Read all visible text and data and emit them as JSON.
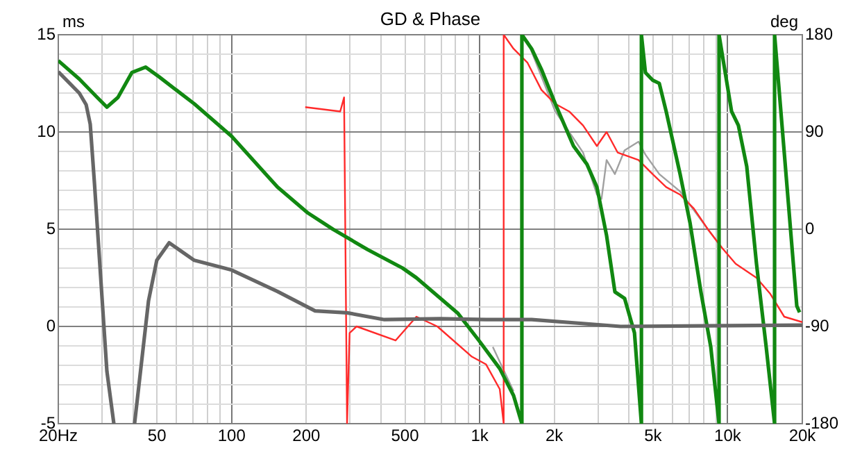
{
  "chart_data": {
    "type": "line",
    "title": "GD & Phase",
    "ylabel": "ms",
    "y2label": "deg",
    "log": "x",
    "grid": true,
    "legend": false,
    "marker": "none",
    "line_style": "solid",
    "xlim": [
      20,
      20000
    ],
    "xticks": [
      {
        "value": 20,
        "label": "20Hz"
      },
      {
        "value": 30,
        "label": null
      },
      {
        "value": 40,
        "label": null
      },
      50,
      {
        "value": 60,
        "label": null
      },
      {
        "value": 70,
        "label": null
      },
      {
        "value": 80,
        "label": null
      },
      {
        "value": 90,
        "label": null
      },
      100,
      200,
      {
        "value": 300,
        "label": null
      },
      {
        "value": 400,
        "label": null
      },
      500,
      {
        "value": 600,
        "label": null
      },
      {
        "value": 700,
        "label": null
      },
      {
        "value": 800,
        "label": null
      },
      {
        "value": 900,
        "label": null
      },
      {
        "value": 1000,
        "label": "1k"
      },
      {
        "value": 2000,
        "label": "2k"
      },
      {
        "value": 3000,
        "label": null
      },
      {
        "value": 4000,
        "label": null
      },
      {
        "value": 5000,
        "label": "5k"
      },
      {
        "value": 6000,
        "label": null
      },
      {
        "value": 7000,
        "label": null
      },
      {
        "value": 8000,
        "label": null
      },
      {
        "value": 9000,
        "label": null
      },
      {
        "value": 10000,
        "label": "10k"
      },
      {
        "value": 20000,
        "label": "20k"
      }
    ],
    "ylim": [
      -5,
      15
    ],
    "yticks": [
      -5,
      {
        "value": -4,
        "label": null
      },
      {
        "value": -3,
        "label": null
      },
      {
        "value": -2,
        "label": null
      },
      {
        "value": -1,
        "label": null
      },
      0,
      {
        "value": 1,
        "label": null
      },
      {
        "value": 2,
        "label": null
      },
      {
        "value": 3,
        "label": null
      },
      {
        "value": 4,
        "label": null
      },
      5,
      {
        "value": 6,
        "label": null
      },
      {
        "value": 7,
        "label": null
      },
      {
        "value": 8,
        "label": null
      },
      {
        "value": 9,
        "label": null
      },
      10,
      {
        "value": 11,
        "label": null
      },
      {
        "value": 12,
        "label": null
      },
      {
        "value": 13,
        "label": null
      },
      {
        "value": 14,
        "label": null
      },
      15
    ],
    "y2lim": [
      -180,
      180
    ],
    "y2ticks": [
      -180,
      -90,
      0,
      90,
      180
    ],
    "series": [
      {
        "color": "#666666",
        "x": [
          20,
          24.3,
          25.9,
          26.9,
          28,
          31.4,
          33.5,
          37,
          40.6,
          46.2,
          49.9,
          56,
          70.7,
          100,
          153,
          217,
          292,
          413,
          692,
          1060,
          1620,
          3700,
          20000
        ],
        "values": [
          13.1,
          12,
          11.4,
          10.4,
          7.3,
          -2.3,
          -5,
          null,
          -5,
          1.3,
          3.4,
          4.3,
          3.4,
          2.9,
          1.8,
          0.8,
          0.7,
          0.35,
          0.4,
          0.35,
          0.35,
          0,
          0.07
        ]
      },
      {
        "color": "#118811",
        "axis": "y2",
        "x": [
          20,
          24.3,
          28.7,
          31.4,
          34.8,
          39.6,
          45,
          51,
          70.7,
          100,
          153,
          203,
          256,
          354,
          489,
          556,
          818,
          993,
          1205,
          1370,
          1480,
          1480,
          1620,
          1774,
          2018,
          2390,
          2710,
          2970,
          3250,
          3510,
          3840,
          4210,
          4490,
          4490,
          4660,
          4980,
          5300,
          5650,
          6430,
          7050,
          7800,
          8550,
          9230,
          9230,
          10370,
          11050,
          11940,
          13070,
          14300,
          15460,
          15460,
          16910,
          19000,
          19500
        ],
        "values": [
          156,
          139,
          122,
          113,
          122,
          145,
          150,
          141,
          116,
          86,
          39,
          15,
          0,
          -19,
          -36,
          -45,
          -78,
          -103,
          -129,
          -154,
          -180,
          180,
          167,
          148,
          116,
          77,
          60,
          39,
          -6,
          -58,
          -64,
          -96,
          -180,
          180,
          145,
          138,
          135,
          109,
          51,
          6,
          -58,
          -109,
          -180,
          180,
          109,
          96,
          58,
          -32,
          -109,
          -180,
          180,
          71,
          -71,
          -77
        ]
      },
      {
        "color": "#ff2a2a",
        "axis": "y2",
        "x": [
          198,
          274,
          284,
          292,
          299,
          319,
          458,
          556,
          675,
          930,
          1060,
          1205,
          1250,
          1250,
          1370,
          1560,
          1774,
          2018,
          2296,
          2612,
          2970,
          3250,
          3600,
          4370,
          4980,
          5650,
          6430,
          7310,
          8320,
          9470,
          10770,
          13070,
          14870,
          16910,
          20000
        ],
        "values": [
          113,
          109,
          122,
          -180,
          -96,
          -90,
          -103,
          -81,
          -90,
          -118,
          -125,
          -148,
          -180,
          180,
          167,
          154,
          129,
          116,
          109,
          96,
          77,
          90,
          71,
          64,
          51,
          39,
          32,
          19,
          0,
          -17,
          -32,
          -45,
          -60,
          -81,
          -86
        ]
      },
      {
        "color": "#a0a0a0",
        "axis": "y2",
        "x": [
          1130,
          1370,
          1480,
          1560,
          2018,
          2296,
          2612,
          2970,
          3100,
          3250,
          3510,
          3840,
          4370,
          4660,
          5300,
          6430,
          8320,
          9470
        ],
        "values": [
          -109,
          -150,
          null,
          174,
          109,
          90,
          71,
          32,
          28,
          64,
          51,
          73,
          81,
          69,
          51,
          35,
          0,
          -17
        ]
      }
    ]
  }
}
